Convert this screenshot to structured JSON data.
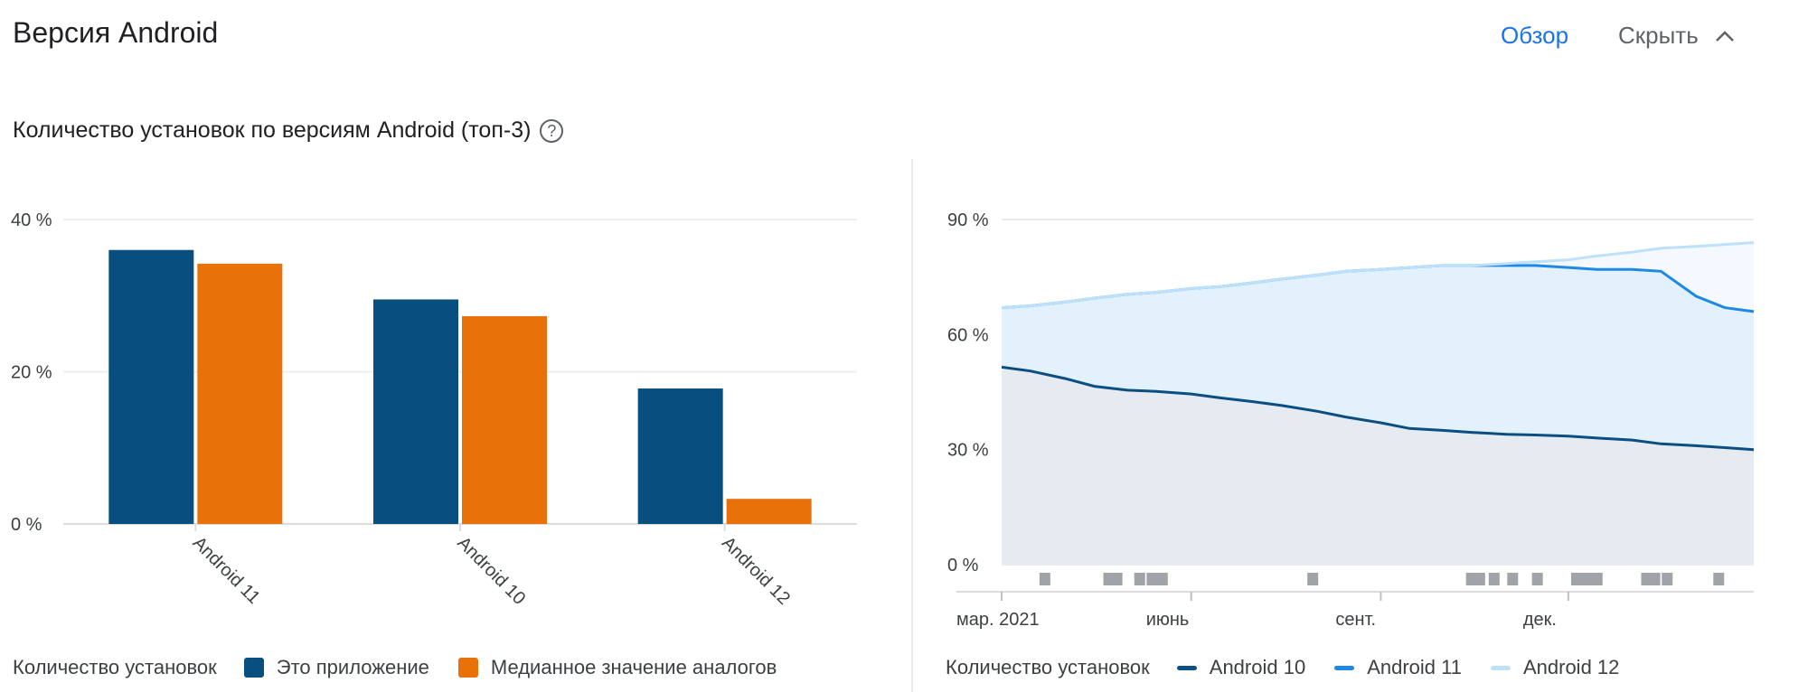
{
  "header": {
    "title": "Версия Android",
    "overview_label": "Обзор",
    "hide_label": "Скрыть"
  },
  "subtitle": "Количество установок по версиям Android (топ-3)",
  "colors": {
    "this_app": "#084f80",
    "median": "#e8710a",
    "android10": "#0b4f82",
    "android11": "#1e88e5",
    "android12": "#bde1fb"
  },
  "legend_left": {
    "lead": "Количество установок",
    "items": [
      "Это приложение",
      "Медианное значение аналогов"
    ]
  },
  "legend_right": {
    "lead": "Количество установок",
    "items": [
      "Android 10",
      "Android 11",
      "Android 12"
    ]
  },
  "chart_data": [
    {
      "type": "bar",
      "categories": [
        "Android 11",
        "Android 10",
        "Android 12"
      ],
      "series": [
        {
          "name": "Это приложение",
          "values": [
            36,
            29.5,
            17.8
          ]
        },
        {
          "name": "Медианное значение аналогов",
          "values": [
            34.2,
            27.3,
            3.3
          ]
        }
      ],
      "ylim": [
        0,
        40
      ],
      "yticks": [
        "0 %",
        "20 %",
        "40 %"
      ],
      "ytick_values": [
        0,
        20,
        40
      ],
      "grid": true,
      "legend": "bottom-left"
    },
    {
      "type": "area",
      "x": [
        "2021-03-01",
        "2021-03-15",
        "2021-04-01",
        "2021-04-15",
        "2021-05-01",
        "2021-05-15",
        "2021-06-01",
        "2021-06-15",
        "2021-07-01",
        "2021-07-15",
        "2021-08-01",
        "2021-08-15",
        "2021-09-01",
        "2021-09-15",
        "2021-10-01",
        "2021-10-15",
        "2021-11-01",
        "2021-11-15",
        "2021-12-01",
        "2021-12-15",
        "2022-01-01",
        "2022-01-15",
        "2022-02-01",
        "2022-02-15",
        "2022-03-01"
      ],
      "series": [
        {
          "name": "Android 10",
          "values": [
            51.5,
            50.5,
            48.5,
            46.5,
            45.5,
            45.2,
            44.5,
            43.5,
            42.5,
            41.5,
            40,
            38.5,
            37,
            35.5,
            35,
            34.5,
            34,
            33.8,
            33.5,
            33,
            32.5,
            31.5,
            31,
            30.5,
            30
          ]
        },
        {
          "name": "Android 11",
          "values": [
            67,
            67.5,
            68.5,
            69.5,
            70.5,
            71,
            72,
            72.5,
            73.5,
            74.5,
            75.5,
            76.5,
            77,
            77.5,
            78,
            78,
            78,
            78,
            77.5,
            77,
            77,
            76.5,
            70,
            67,
            66
          ]
        },
        {
          "name": "Android 12",
          "values": [
            67,
            67.5,
            68.5,
            69.5,
            70.5,
            71,
            72,
            72.5,
            73.5,
            74.5,
            75.5,
            76.5,
            77,
            77.5,
            78,
            78,
            78.5,
            79,
            79.5,
            80.5,
            81.5,
            82.5,
            83,
            83.5,
            84
          ]
        }
      ],
      "xticks": [
        {
          "date": "2021-03-01",
          "label": "мар. 2021"
        },
        {
          "date": "2021-06-01",
          "label": "июнь"
        },
        {
          "date": "2021-09-01",
          "label": "сент."
        },
        {
          "date": "2021-12-01",
          "label": "дек."
        }
      ],
      "ylim": [
        0,
        90
      ],
      "yticks": [
        "0 %",
        "30 %",
        "60 %",
        "90 %"
      ],
      "ytick_values": [
        0,
        30,
        60,
        90
      ],
      "grid": true,
      "legend": "bottom-left",
      "annotations": [
        "2021-03-22",
        "2021-04-22",
        "2021-04-26",
        "2021-05-07",
        "2021-05-13",
        "2021-05-18",
        "2021-07-30",
        "2021-10-15",
        "2021-10-19",
        "2021-10-26",
        "2021-11-04",
        "2021-11-16",
        "2021-12-05",
        "2021-12-10",
        "2021-12-15",
        "2022-01-08",
        "2022-01-12",
        "2022-01-18",
        "2022-02-12"
      ]
    }
  ]
}
